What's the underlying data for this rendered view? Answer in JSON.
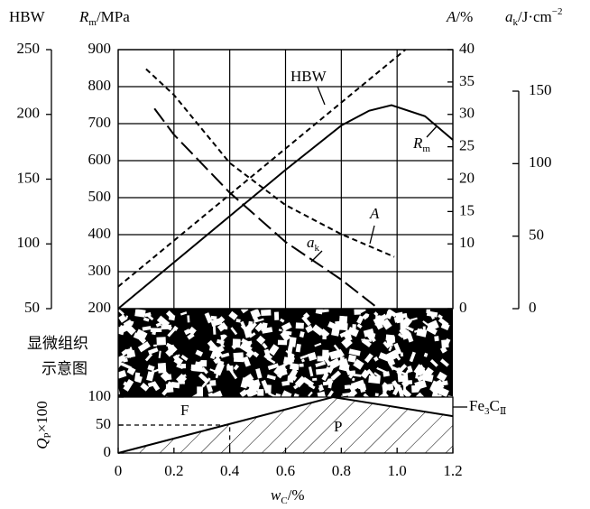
{
  "chart_data": [
    {
      "type": "line",
      "header_hbw": "HBW",
      "header_rm": {
        "main": "R",
        "sub": "m",
        "rest": "/MPa"
      },
      "header_a": {
        "main": "A",
        "rest": "/%"
      },
      "header_ak": {
        "main": "a",
        "sub": "k",
        "rest": "/J·cm",
        "sup": "−2"
      },
      "xlim": [
        0,
        1.2
      ],
      "xticks": [
        0,
        0.2,
        0.4,
        0.6,
        0.8,
        {
          "value": 1,
          "label": "1.0"
        },
        1.2
      ],
      "ylim": [
        200,
        900
      ],
      "yticks": [
        200,
        300,
        400,
        500,
        600,
        700,
        800,
        900
      ],
      "y2lim": [
        0,
        40
      ],
      "y2ticks": [
        0,
        10,
        15,
        20,
        25,
        30,
        35,
        40
      ],
      "y3lim": [
        50,
        250
      ],
      "y3ticks": [
        50,
        100,
        150,
        200,
        250
      ],
      "y4lim": [
        0,
        150
      ],
      "y4ticks": [
        0,
        50,
        100,
        150
      ],
      "grid": true,
      "series": [
        {
          "name": {
            "main": "R",
            "sub": "m"
          },
          "axis": "y",
          "line_style": "solid",
          "color": "#000000",
          "x": [
            0,
            0.2,
            0.4,
            0.6,
            0.8,
            0.9,
            0.98,
            1.1,
            1.2
          ],
          "values": [
            200,
            325,
            450,
            575,
            695,
            735,
            750,
            720,
            656
          ]
        },
        {
          "name": {
            "main": "HBW"
          },
          "axis": "y3",
          "line_style": "dashed",
          "color": "#000000",
          "x": [
            0,
            1.03
          ],
          "values": [
            67,
            250
          ]
        },
        {
          "name": {
            "main": "A"
          },
          "axis": "y2",
          "line_style": "dashed",
          "color": "#000000",
          "x": [
            0.1,
            0.2,
            0.4,
            0.6,
            0.8,
            0.99
          ],
          "values": [
            37,
            33,
            22.5,
            16,
            11.5,
            8
          ]
        },
        {
          "name": {
            "main": "a",
            "sub": "k"
          },
          "axis": "y4",
          "line_style": "long-dashed",
          "color": "#000000",
          "x": [
            0.13,
            0.2,
            0.4,
            0.6,
            0.8,
            0.92
          ],
          "values": [
            138,
            120,
            80,
            46,
            20,
            2
          ]
        }
      ]
    },
    {
      "type": "area",
      "band_label": [
        "显微组织",
        "示意图"
      ],
      "y_label": {
        "main": "Q",
        "sub": "P",
        "rest": "×100"
      },
      "x_label": {
        "main": "w",
        "sub": "C",
        "rest": "/%"
      },
      "xlim": [
        0,
        1.2
      ],
      "xticks": [
        0,
        0.2,
        0.4,
        0.6,
        0.8,
        {
          "value": 1,
          "label": "1.0"
        },
        1.2
      ],
      "ylim": [
        0,
        100
      ],
      "yticks": [
        0,
        50,
        100
      ],
      "guide": {
        "x": 0.4,
        "y": 50
      },
      "region_labels": {
        "F": "F",
        "P": "P",
        "fe3c": {
          "main": "Fe",
          "sub1": "3",
          "mid": "C",
          "sub2": "Ⅱ"
        }
      },
      "series": [
        {
          "name": "P",
          "color": "#000000",
          "x": [
            0,
            0.77,
            1.2
          ],
          "values": [
            0,
            100,
            66
          ]
        }
      ]
    }
  ]
}
